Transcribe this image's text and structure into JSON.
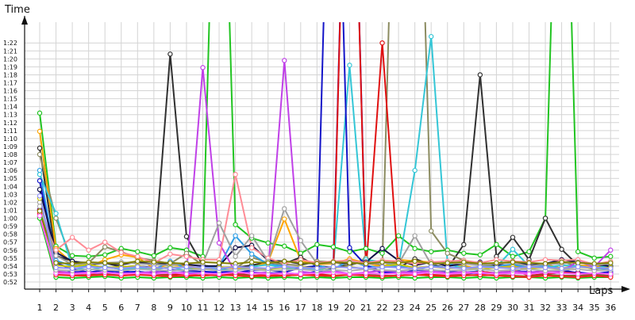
{
  "chart_data": {
    "type": "line",
    "ylabel": "Time",
    "xlabel": "Laps",
    "categories": [
      1,
      2,
      3,
      4,
      5,
      6,
      7,
      8,
      9,
      10,
      11,
      12,
      13,
      14,
      15,
      16,
      17,
      18,
      19,
      20,
      21,
      22,
      23,
      24,
      25,
      26,
      27,
      28,
      29,
      30,
      31,
      32,
      33,
      34,
      35,
      36
    ],
    "ylim": [
      "0:52",
      "1:22"
    ],
    "yticks": [
      "0:52",
      "0:53",
      "0:54",
      "0:55",
      "0:56",
      "0:57",
      "0:58",
      "0:59",
      "1:00",
      "1:01",
      "1:02",
      "1:03",
      "1:04",
      "1:05",
      "1:06",
      "1:07",
      "1:08",
      "1:09",
      "1:10",
      "1:11",
      "1:12",
      "1:13",
      "1:14",
      "1:15",
      "1:16",
      "1:17",
      "1:18",
      "1:19",
      "1:20",
      "1:21",
      "1:22"
    ],
    "grid": true,
    "legend": "none",
    "series": [
      {
        "color": "#22c422",
        "values": [
          73.2,
          56.5,
          55.3,
          55.2,
          55.4,
          56.2,
          55.8,
          55.3,
          56.3,
          56.0,
          55.2,
          130,
          59.2,
          57.5,
          56.9,
          56.5,
          55.6,
          56.7,
          56.4,
          55.8,
          56.2,
          55.6,
          57.8,
          56.2,
          55.8,
          56.0,
          55.6,
          55.4,
          56.7,
          55.2,
          55.8,
          60.0,
          130,
          55.8,
          55.0,
          55.2
        ]
      },
      {
        "color": "#303030",
        "values": [
          68.8,
          55.3,
          54.6,
          54.2,
          54.4,
          53.9,
          54.0,
          53.8,
          80.6,
          57.7,
          54.1,
          53.7,
          53.8,
          54.1,
          54.5,
          54.3,
          55.1,
          54.0,
          53.8,
          54.1,
          54.7,
          54.0,
          53.8,
          54.9,
          54.2,
          53.7,
          56.7,
          78.0,
          55.2,
          57.6,
          54.8,
          60.0,
          56.1,
          54.1,
          53.6,
          53.9
        ]
      },
      {
        "color": "#8b8b60",
        "values": [
          68.0,
          60.0,
          54.6,
          54.4,
          56.4,
          55.8,
          55.0,
          54.7,
          54.3,
          55.6,
          54.1,
          53.8,
          53.7,
          55.1,
          54.4,
          54.2,
          54.1,
          54.6,
          54.5,
          54.0,
          55.0,
          53.9,
          130,
          130,
          58.4,
          55.6,
          54.7,
          54.1,
          54.0,
          54.0,
          53.8,
          54.0,
          54.6,
          53.9,
          53.8,
          54.5
        ]
      },
      {
        "color": "#ffa500",
        "values": [
          70.9,
          56.2,
          54.4,
          53.9,
          54.8,
          55.4,
          55.1,
          53.7,
          54.2,
          54.0,
          53.7,
          53.9,
          53.7,
          53.8,
          54.5,
          59.9,
          54.7,
          54.2,
          54.3,
          54.9,
          54.4,
          53.9,
          54.8,
          54.6,
          54.5,
          54.2,
          54.1,
          53.5,
          54.0,
          54.0,
          53.5,
          54.2,
          53.7,
          54.1,
          54.0,
          53.7
        ]
      },
      {
        "color": "#2e9ee6",
        "values": [
          66.0,
          54.7,
          54.0,
          54.0,
          53.9,
          53.6,
          53.8,
          53.5,
          54.6,
          53.7,
          53.8,
          54.0,
          57.8,
          55.5,
          54.2,
          54.0,
          53.6,
          54.1,
          53.6,
          54.7,
          54.0,
          53.8,
          54.1,
          53.5,
          54.0,
          53.8,
          53.9,
          53.4,
          54.0,
          54.2,
          53.8,
          54.1,
          53.6,
          54.0,
          53.7,
          53.6
        ]
      },
      {
        "color": "#34c6d6",
        "values": [
          65.5,
          60.6,
          53.8,
          53.5,
          53.9,
          53.6,
          53.7,
          53.5,
          53.9,
          53.4,
          53.8,
          53.6,
          53.4,
          53.9,
          54.2,
          53.7,
          53.7,
          53.5,
          53.9,
          79.2,
          54.8,
          54.5,
          54.0,
          66.0,
          82.8,
          54.4,
          53.7,
          53.9,
          53.9,
          56.1,
          54.0,
          53.8,
          54.1,
          54.0,
          53.7,
          54.1
        ]
      },
      {
        "color": "#1414c8",
        "values": [
          64.7,
          54.4,
          53.6,
          53.2,
          53.5,
          53.2,
          53.3,
          53.1,
          53.5,
          53.4,
          53.3,
          53.2,
          53.1,
          53.5,
          53.5,
          53.2,
          53.8,
          54.0,
          130,
          56.3,
          54.1,
          53.3,
          53.0,
          53.5,
          53.5,
          53.3,
          53.2,
          53.3,
          53.1,
          53.5,
          53.1,
          53.3,
          53.5,
          53.1,
          53.0,
          53.3
        ]
      },
      {
        "color": "#101048",
        "values": [
          63.6,
          55.7,
          54.6,
          54.2,
          54.4,
          54.2,
          54.5,
          54.2,
          54.4,
          54.2,
          54.0,
          54.0,
          56.3,
          56.6,
          54.7,
          54.6,
          54.3,
          54.4,
          54.5,
          54.3,
          54.5,
          56.2,
          54.7,
          54.1,
          54.5,
          54.0,
          54.3,
          54.5,
          54.1,
          54.6,
          54.1,
          54.3,
          54.8,
          54.5,
          54.2,
          54.0
        ]
      },
      {
        "color": "#0000e0",
        "values": [
          61.1,
          53.0,
          53.3,
          53.1,
          53.2,
          53.4,
          53.1,
          53.3,
          53.2,
          53.1,
          53.1,
          53.3,
          53.2,
          53.2,
          53.1,
          53.1,
          53.0,
          53.3,
          53.6,
          130,
          53.9,
          53.1,
          53.3,
          53.0,
          53.2,
          53.4,
          53.0,
          53.2,
          53.1,
          53.3,
          53.3,
          53.0,
          53.2,
          53.2,
          53.0,
          53.1
        ]
      },
      {
        "color": "#e01010",
        "values": [
          61.0,
          53.2,
          53.1,
          53.0,
          53.1,
          52.8,
          53.0,
          52.9,
          52.9,
          53.0,
          52.8,
          52.9,
          53.1,
          52.8,
          52.9,
          52.8,
          52.9,
          53.0,
          52.8,
          130,
          53.4,
          82.0,
          53.1,
          53.0,
          52.9,
          52.8,
          53.0,
          53.3,
          53.1,
          53.5,
          52.8,
          53.0,
          53.2,
          53.1,
          52.8,
          52.8
        ]
      },
      {
        "color": "#c040e8",
        "values": [
          60.5,
          53.4,
          53.1,
          53.2,
          53.0,
          53.1,
          53.1,
          53.3,
          53.1,
          53.2,
          78.9,
          56.9,
          53.2,
          53.1,
          53.2,
          79.8,
          53.3,
          53.1,
          53.4,
          53.0,
          53.2,
          53.4,
          53.3,
          53.2,
          53.4,
          53.1,
          53.3,
          53.0,
          53.2,
          53.3,
          53.2,
          53.4,
          53.3,
          54.6,
          53.9,
          56.0
        ]
      },
      {
        "color": "#ff8c96",
        "values": [
          60.8,
          56.0,
          57.6,
          56.0,
          57.0,
          55.7,
          55.2,
          54.4,
          55.5,
          55.2,
          54.8,
          54.8,
          65.5,
          56.3,
          55.0,
          54.3,
          54.8,
          54.4,
          54.6,
          54.7,
          54.4,
          54.7,
          54.6,
          54.3,
          54.5,
          54.6,
          54.7,
          54.4,
          54.8,
          54.6,
          54.5,
          54.8,
          54.7,
          54.8,
          54.2,
          54.6
        ]
      },
      {
        "color": "#a0a0a0",
        "values": [
          62.0,
          55.3,
          54.2,
          54.3,
          54.4,
          54.5,
          54.3,
          54.2,
          54.1,
          54.4,
          54.3,
          59.4,
          55.2,
          57.8,
          54.6,
          61.2,
          57.2,
          54.3,
          54.4,
          54.5,
          54.2,
          54.4,
          54.3,
          57.8,
          54.2,
          54.4,
          54.3,
          54.1,
          54.3,
          54.4,
          54.0,
          54.2,
          54.3,
          54.5,
          54.1,
          54.3
        ]
      },
      {
        "color": "#c8c800",
        "values": [
          62.5,
          54.1,
          53.9,
          54.2,
          53.8,
          53.9,
          54.0,
          53.7,
          53.8,
          53.9,
          53.6,
          53.8,
          53.9,
          53.7,
          53.6,
          53.8,
          53.9,
          53.7,
          53.8,
          53.9,
          53.6,
          54.0,
          54.2,
          53.8,
          53.9,
          53.7,
          53.8,
          53.6,
          53.8,
          53.9,
          53.7,
          53.8,
          53.6,
          53.9,
          53.7,
          53.8
        ]
      },
      {
        "color": "#8b5a2b",
        "values": [
          60.2,
          52.9,
          52.9,
          52.8,
          53.0,
          52.8,
          52.9,
          52.9,
          52.8,
          52.7,
          52.9,
          52.8,
          52.9,
          52.8,
          52.7,
          52.8,
          52.9,
          52.8,
          52.7,
          52.9,
          52.9,
          52.8,
          52.8,
          52.9,
          52.8,
          52.7,
          52.9,
          52.8,
          52.9,
          52.8,
          52.7,
          52.9,
          52.8,
          52.8,
          52.9,
          52.8
        ]
      },
      {
        "color": "#10c810",
        "values": [
          60.0,
          52.6,
          52.5,
          52.6,
          52.7,
          52.5,
          52.6,
          52.5,
          52.6,
          52.6,
          52.5,
          52.6,
          52.5,
          52.6,
          52.5,
          52.6,
          52.5,
          52.6,
          52.5,
          52.6,
          52.6,
          52.5,
          52.6,
          52.5,
          52.6,
          52.6,
          52.5,
          52.6,
          52.5,
          52.6,
          52.6,
          52.5,
          52.6,
          52.5,
          52.6,
          52.6
        ]
      },
      {
        "color": "#ff2222",
        "values": [
          60.6,
          52.9,
          52.8,
          52.8,
          52.9,
          52.8,
          52.9,
          52.8,
          52.7,
          52.8,
          52.8,
          52.9,
          52.8,
          52.7,
          52.8,
          52.8,
          52.9,
          52.8,
          52.8,
          52.9,
          52.8,
          52.7,
          52.8,
          52.9,
          52.8,
          52.7,
          52.8,
          52.9,
          52.8,
          52.7,
          52.6,
          52.8,
          52.7,
          52.6,
          52.8,
          52.6
        ]
      },
      {
        "color": "#ff60ff",
        "values": [
          60.3,
          53.1,
          53.0,
          53.1,
          53.2,
          53.0,
          53.1,
          53.0,
          53.2,
          53.0,
          53.1,
          53.0,
          53.2,
          53.1,
          53.0,
          53.1,
          53.0,
          53.1,
          53.2,
          53.0,
          53.1,
          53.0,
          53.1,
          53.0,
          53.2,
          53.0,
          53.1,
          53.2,
          53.0,
          53.1,
          53.0,
          53.2,
          53.1,
          53.0,
          53.1,
          53.0
        ]
      },
      {
        "color": "#b0b0b0",
        "values": [
          61.5,
          53.5,
          53.4,
          53.6,
          53.5,
          53.4,
          53.6,
          53.5,
          53.4,
          53.5,
          53.6,
          53.4,
          53.5,
          53.6,
          53.4,
          53.5,
          53.6,
          53.4,
          53.5,
          53.4,
          53.6,
          53.5,
          53.4,
          53.6,
          53.5,
          53.4,
          53.5,
          53.6,
          53.4,
          53.5,
          53.6,
          53.4,
          53.5,
          53.6,
          53.4,
          53.5
        ]
      },
      {
        "color": "#808000",
        "values": [
          60.9,
          54.4,
          54.3,
          54.5,
          54.4,
          54.3,
          54.6,
          54.5,
          54.4,
          54.3,
          54.5,
          54.4,
          54.3,
          54.5,
          54.4,
          54.6,
          54.4,
          54.3,
          54.5,
          54.4,
          54.3,
          54.5,
          54.4,
          54.6,
          54.3,
          54.4,
          54.5,
          54.3,
          54.4,
          54.5,
          54.4,
          54.3,
          54.5,
          54.4,
          54.3,
          54.4
        ]
      },
      {
        "color": "#9090ff",
        "values": [
          62.8,
          53.8,
          53.7,
          53.9,
          53.8,
          53.7,
          53.9,
          53.8,
          53.7,
          53.9,
          53.8,
          53.7,
          53.9,
          53.8,
          53.7,
          53.9,
          53.8,
          53.7,
          53.9,
          53.8,
          53.7,
          53.9,
          53.8,
          53.7,
          53.9,
          53.8,
          53.7,
          53.9,
          53.8,
          53.7,
          53.9,
          53.8,
          53.7,
          53.9,
          53.8,
          53.7
        ]
      }
    ]
  }
}
